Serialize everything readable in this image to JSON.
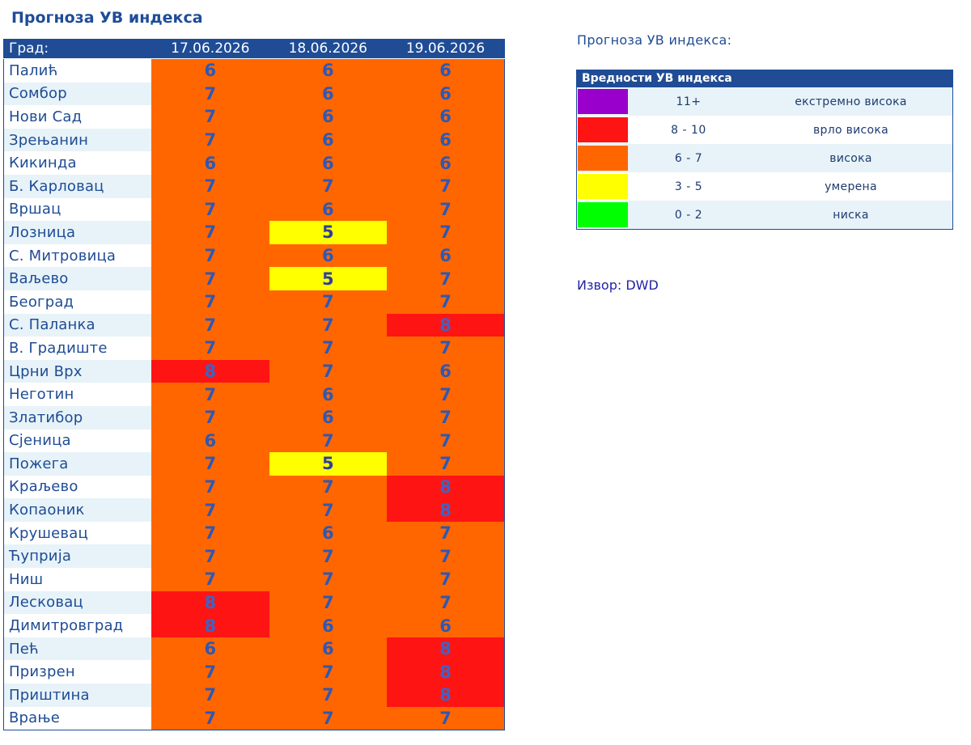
{
  "page": {
    "title": "Прогноза УВ индекса"
  },
  "table": {
    "header": {
      "city": "Град:",
      "dates": [
        "17.06.2026",
        "18.06.2026",
        "19.06.2026"
      ]
    },
    "rows": [
      {
        "city": "Палић",
        "values": [
          6,
          6,
          6
        ]
      },
      {
        "city": "Сомбор",
        "values": [
          7,
          6,
          6
        ]
      },
      {
        "city": "Нови Сад",
        "values": [
          7,
          6,
          6
        ]
      },
      {
        "city": "Зрењанин",
        "values": [
          7,
          6,
          6
        ]
      },
      {
        "city": "Кикинда",
        "values": [
          6,
          6,
          6
        ]
      },
      {
        "city": "Б. Карловац",
        "values": [
          7,
          7,
          7
        ]
      },
      {
        "city": "Вршац",
        "values": [
          7,
          6,
          7
        ]
      },
      {
        "city": "Лозница",
        "values": [
          7,
          5,
          7
        ]
      },
      {
        "city": "С. Митровица",
        "values": [
          7,
          6,
          6
        ]
      },
      {
        "city": "Ваљево",
        "values": [
          7,
          5,
          7
        ]
      },
      {
        "city": "Београд",
        "values": [
          7,
          7,
          7
        ]
      },
      {
        "city": "С. Паланка",
        "values": [
          7,
          7,
          8
        ]
      },
      {
        "city": "В. Градиште",
        "values": [
          7,
          7,
          7
        ]
      },
      {
        "city": "Црни Врх",
        "values": [
          8,
          7,
          6
        ]
      },
      {
        "city": "Неготин",
        "values": [
          7,
          6,
          7
        ]
      },
      {
        "city": "Златибор",
        "values": [
          7,
          6,
          7
        ]
      },
      {
        "city": "Сјеница",
        "values": [
          6,
          7,
          7
        ]
      },
      {
        "city": "Пожега",
        "values": [
          7,
          5,
          7
        ]
      },
      {
        "city": "Краљево",
        "values": [
          7,
          7,
          8
        ]
      },
      {
        "city": "Копаоник",
        "values": [
          7,
          7,
          8
        ]
      },
      {
        "city": "Крушевац",
        "values": [
          7,
          6,
          7
        ]
      },
      {
        "city": "Ћуприја",
        "values": [
          7,
          7,
          7
        ]
      },
      {
        "city": "Ниш",
        "values": [
          7,
          7,
          7
        ]
      },
      {
        "city": "Лесковац",
        "values": [
          8,
          7,
          7
        ]
      },
      {
        "city": "Димитровград",
        "values": [
          8,
          6,
          6
        ]
      },
      {
        "city": "Пећ",
        "values": [
          6,
          6,
          8
        ]
      },
      {
        "city": "Призрен",
        "values": [
          7,
          7,
          8
        ]
      },
      {
        "city": "Приштина",
        "values": [
          7,
          7,
          8
        ]
      },
      {
        "city": "Врање",
        "values": [
          7,
          7,
          7
        ]
      }
    ]
  },
  "legend": {
    "heading": "Прогноза УВ индекса:",
    "title": "Вредности УВ индекса",
    "items": [
      {
        "range": "11+",
        "label": "екстремно висока",
        "color": "#9900cc"
      },
      {
        "range": "8 - 10",
        "label": "врло висока",
        "color": "#ff1414"
      },
      {
        "range": "6 - 7",
        "label": "висока",
        "color": "#ff6600"
      },
      {
        "range": "3 - 5",
        "label": "умерена",
        "color": "#ffff00"
      },
      {
        "range": "0 - 2",
        "label": "ниска",
        "color": "#00ff00"
      }
    ]
  },
  "source": {
    "text": "Извор: DWD"
  }
}
